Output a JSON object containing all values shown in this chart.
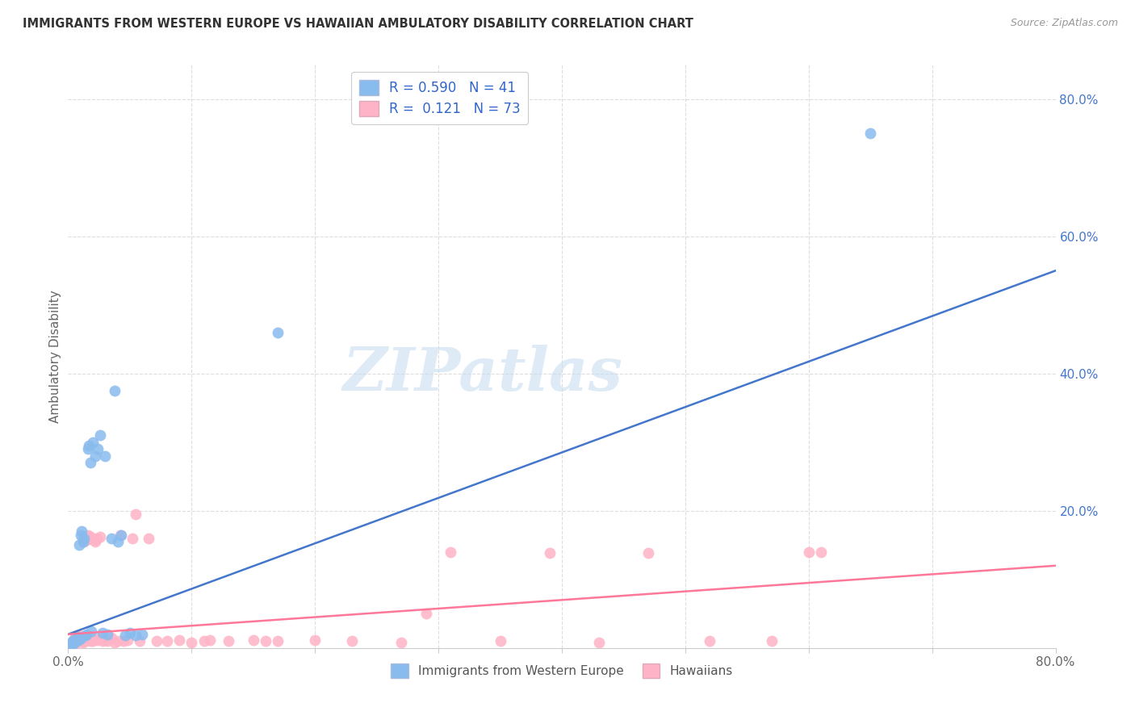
{
  "title": "IMMIGRANTS FROM WESTERN EUROPE VS HAWAIIAN AMBULATORY DISABILITY CORRELATION CHART",
  "source": "Source: ZipAtlas.com",
  "ylabel": "Ambulatory Disability",
  "xlim": [
    0.0,
    0.8
  ],
  "ylim": [
    0.0,
    0.85
  ],
  "blue_color": "#88BBEE",
  "pink_color": "#FFB3C6",
  "blue_line_color": "#4477CC",
  "pink_line_color": "#FF7799",
  "watermark": "ZIPatlas",
  "legend_r1": "R = 0.590",
  "legend_n1": "N = 41",
  "legend_r2": "R =  0.121",
  "legend_n2": "N = 73",
  "blue_points_x": [
    0.002,
    0.003,
    0.004,
    0.004,
    0.005,
    0.005,
    0.006,
    0.006,
    0.007,
    0.007,
    0.008,
    0.008,
    0.009,
    0.01,
    0.01,
    0.011,
    0.012,
    0.013,
    0.014,
    0.015,
    0.016,
    0.017,
    0.018,
    0.019,
    0.02,
    0.022,
    0.024,
    0.026,
    0.028,
    0.03,
    0.032,
    0.035,
    0.038,
    0.04,
    0.043,
    0.046,
    0.05,
    0.055,
    0.06,
    0.65,
    0.17
  ],
  "blue_points_y": [
    0.005,
    0.008,
    0.006,
    0.01,
    0.008,
    0.012,
    0.01,
    0.014,
    0.013,
    0.015,
    0.012,
    0.016,
    0.15,
    0.165,
    0.014,
    0.17,
    0.155,
    0.16,
    0.018,
    0.02,
    0.29,
    0.295,
    0.27,
    0.025,
    0.3,
    0.28,
    0.29,
    0.31,
    0.022,
    0.28,
    0.02,
    0.16,
    0.375,
    0.155,
    0.165,
    0.018,
    0.022,
    0.018,
    0.02,
    0.75,
    0.46
  ],
  "pink_points_x": [
    0.003,
    0.004,
    0.005,
    0.005,
    0.006,
    0.006,
    0.007,
    0.007,
    0.008,
    0.008,
    0.009,
    0.009,
    0.01,
    0.01,
    0.011,
    0.011,
    0.012,
    0.012,
    0.013,
    0.013,
    0.014,
    0.014,
    0.015,
    0.015,
    0.016,
    0.016,
    0.017,
    0.018,
    0.018,
    0.019,
    0.02,
    0.021,
    0.022,
    0.023,
    0.024,
    0.025,
    0.026,
    0.028,
    0.03,
    0.032,
    0.035,
    0.038,
    0.04,
    0.042,
    0.045,
    0.048,
    0.052,
    0.058,
    0.065,
    0.072,
    0.08,
    0.09,
    0.1,
    0.115,
    0.13,
    0.15,
    0.17,
    0.2,
    0.23,
    0.27,
    0.31,
    0.35,
    0.39,
    0.43,
    0.47,
    0.52,
    0.57,
    0.61,
    0.055,
    0.11,
    0.16,
    0.29,
    0.6
  ],
  "pink_points_y": [
    0.006,
    0.009,
    0.008,
    0.014,
    0.007,
    0.012,
    0.01,
    0.016,
    0.009,
    0.014,
    0.012,
    0.018,
    0.01,
    0.016,
    0.01,
    0.015,
    0.008,
    0.16,
    0.155,
    0.012,
    0.012,
    0.163,
    0.014,
    0.16,
    0.012,
    0.165,
    0.158,
    0.01,
    0.162,
    0.014,
    0.01,
    0.157,
    0.155,
    0.16,
    0.012,
    0.014,
    0.162,
    0.01,
    0.012,
    0.01,
    0.015,
    0.008,
    0.01,
    0.165,
    0.01,
    0.012,
    0.16,
    0.01,
    0.16,
    0.01,
    0.01,
    0.012,
    0.008,
    0.012,
    0.01,
    0.012,
    0.01,
    0.012,
    0.01,
    0.008,
    0.14,
    0.01,
    0.138,
    0.008,
    0.138,
    0.01,
    0.01,
    0.14,
    0.195,
    0.01,
    0.01,
    0.05,
    0.14
  ]
}
